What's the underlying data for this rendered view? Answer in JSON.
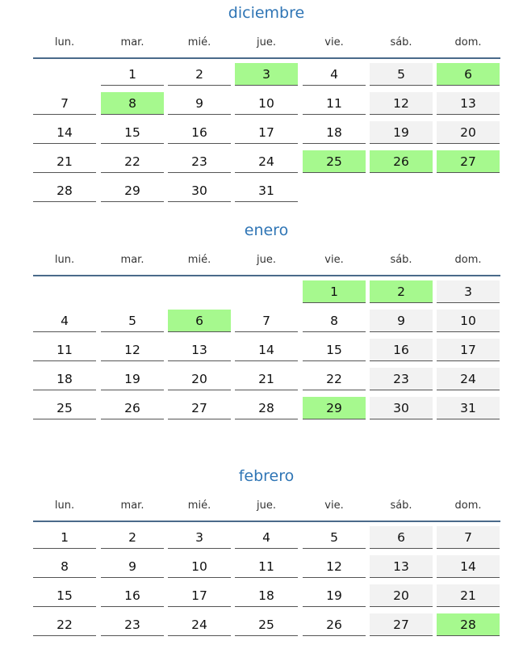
{
  "colors": {
    "title": "#2f75b5",
    "highlight": "#a6f98e",
    "weekend": "#f2f2f2",
    "rule": "#4a6a8a"
  },
  "weekdays": [
    "lun.",
    "mar.",
    "mié.",
    "jue.",
    "vie.",
    "sáb.",
    "dom."
  ],
  "months": [
    {
      "name": "diciembre",
      "first_weekday": 2,
      "days": 31,
      "highlighted": [
        3,
        6,
        8,
        25,
        26,
        27
      ]
    },
    {
      "name": "enero",
      "first_weekday": 5,
      "days": 31,
      "highlighted": [
        1,
        2,
        6,
        29
      ]
    },
    {
      "name": "febrero",
      "first_weekday": 1,
      "days": 28,
      "highlighted": [
        28
      ]
    }
  ]
}
